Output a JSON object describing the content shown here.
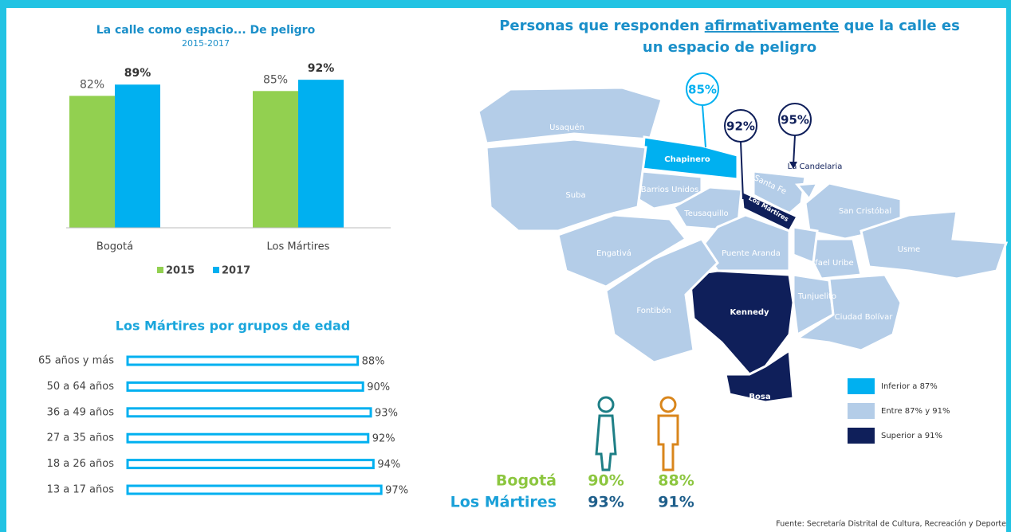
{
  "chart_data": [
    {
      "type": "bar",
      "title": "La calle como espacio... De peligro",
      "subtitle": "2015-2017",
      "categories": [
        "Bogotá",
        "Los Mártires"
      ],
      "series": [
        {
          "name": "2015",
          "color": "#92d050",
          "values": [
            82,
            85
          ],
          "value_labels": [
            "82%",
            "85%"
          ]
        },
        {
          "name": "2017",
          "color": "#00b0f0",
          "values": [
            89,
            92
          ],
          "value_labels": [
            "89%",
            "92%"
          ]
        }
      ],
      "ylim": [
        0,
        100
      ],
      "grid": false,
      "legend": "bottom"
    },
    {
      "type": "hbar",
      "title": "Los Mártires por grupos de edad",
      "categories": [
        "65 años y más",
        "50 a 64 años",
        "36 a 49 años",
        "27 a 35 años",
        "18 a 26 años",
        "13 a 17 años"
      ],
      "values": [
        88,
        90,
        93,
        92,
        94,
        97
      ],
      "value_labels": [
        "88%",
        "90%",
        "93%",
        "92%",
        "94%",
        "97%"
      ],
      "color": "#00b0f0",
      "xlim": [
        0,
        100
      ],
      "grid": false
    }
  ],
  "map": {
    "title_before": "Personas que responden ",
    "title_emphasis": "afirmativamente",
    "title_after": " que la calle es",
    "title_line2": "un espacio de peligro",
    "districts": [
      "Usaquén",
      "Chapinero",
      "Barrios Unidos",
      "Suba",
      "Teusaquillo",
      "Santa Fe",
      "Los Mártires",
      "La Candelaria",
      "San Cristóbal",
      "Puente Aranda",
      "Rafael Uribe",
      "Usme",
      "Engativá",
      "Kennedy",
      "Tunjuelito",
      "Ciudad Bolívar",
      "Fontibón",
      "Bosa"
    ],
    "callouts": [
      "85%",
      "92%",
      "95%"
    ],
    "legend": [
      "Inferior a 87%",
      "Entre 87% y 91%",
      "Superior a 91%"
    ]
  },
  "gender_stats": {
    "rows": [
      {
        "label": "Bogotá",
        "values": [
          "90%",
          "88%"
        ]
      },
      {
        "label": "Los Mártires",
        "values": [
          "93%",
          "91%"
        ]
      }
    ]
  },
  "source": "Fuente: Secretaría Distrital de Cultura, Recreación y Deporte"
}
